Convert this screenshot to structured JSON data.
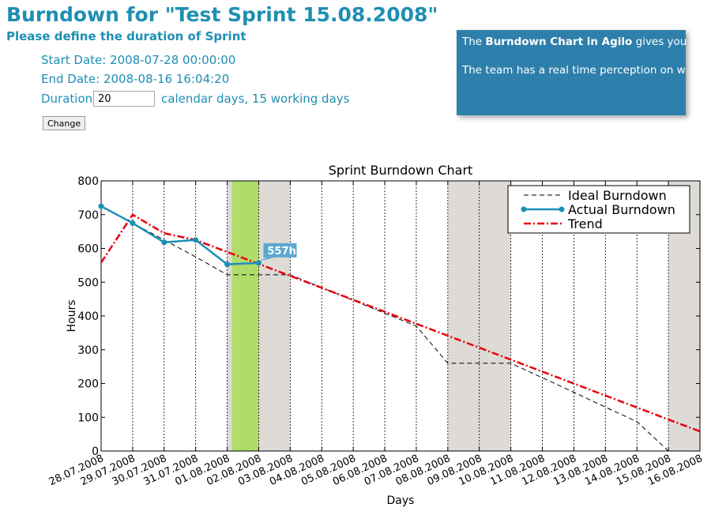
{
  "header": {
    "title": "Burndown for \"Test Sprint 15.08.2008\"",
    "subtitle": "Please define the duration of Sprint"
  },
  "sprint": {
    "start_label": "Start Date: 2008-07-28 00:00:00",
    "end_label": "End Date: 2008-08-16 16:04:20",
    "duration_label": "Duration",
    "duration_value": "20",
    "duration_suffix": "calendar days, 15 working days",
    "change_button": "Change"
  },
  "callout": {
    "line1_pre": "The ",
    "line1_bold": "Burndown Chart in Agilo",
    "line1_post": " gives you the actual status of the Sprint.",
    "line2": "The team has a real time perception on what is going on, and it can react fast."
  },
  "colors": {
    "accent": "#1f8fb3",
    "callout_bg": "#2e7fab",
    "actual": "#1a8fb8",
    "trend": "#e8000b",
    "weekend": "#dedad5",
    "today": "#b0dc6a"
  },
  "chart_data": {
    "type": "line",
    "title": "Sprint Burndown Chart",
    "xlabel": "Days",
    "ylabel": "Hours",
    "x": [
      "28.07.2008",
      "29.07.2008",
      "30.07.2008",
      "31.07.2008",
      "01.08.2008",
      "02.08.2008",
      "03.08.2008",
      "04.08.2008",
      "05.08.2008",
      "06.08.2008",
      "07.08.2008",
      "08.08.2008",
      "09.08.2008",
      "10.08.2008",
      "11.08.2008",
      "12.08.2008",
      "13.08.2008",
      "14.08.2008",
      "15.08.2008",
      "16.08.2008"
    ],
    "ylim": [
      0,
      800
    ],
    "yticks": [
      0,
      100,
      200,
      300,
      400,
      500,
      600,
      700,
      800
    ],
    "grid": "vertical",
    "legend_position": "top-right",
    "weekend_bands": [
      [
        4,
        6
      ],
      [
        11,
        13
      ],
      [
        18,
        19
      ]
    ],
    "today_band": [
      4.15,
      5.0
    ],
    "annotation": {
      "text": "557h",
      "x": 5,
      "y": 557
    },
    "series": [
      {
        "name": "Ideal Burndown",
        "style": "dashed",
        "color": "#000000",
        "points": [
          [
            0,
            725
          ],
          [
            1,
            675
          ],
          [
            2,
            625
          ],
          [
            3,
            575
          ],
          [
            4,
            522
          ],
          [
            6,
            522
          ],
          [
            7,
            484
          ],
          [
            8,
            446
          ],
          [
            9,
            408
          ],
          [
            10,
            370
          ],
          [
            11,
            260
          ],
          [
            13,
            260
          ],
          [
            14,
            217
          ],
          [
            15,
            174
          ],
          [
            16,
            130
          ],
          [
            17,
            87
          ],
          [
            18,
            0
          ]
        ]
      },
      {
        "name": "Actual Burndown",
        "style": "solid-marker",
        "color": "#1a8fb8",
        "points": [
          [
            0,
            725
          ],
          [
            1,
            675
          ],
          [
            2,
            618
          ],
          [
            3,
            625
          ],
          [
            4,
            553
          ],
          [
            5,
            557
          ]
        ]
      },
      {
        "name": "Trend",
        "style": "dashdot",
        "color": "#e8000b",
        "points": [
          [
            0,
            558
          ],
          [
            1,
            700
          ],
          [
            2,
            645
          ],
          [
            3,
            625
          ],
          [
            19,
            58
          ]
        ]
      }
    ]
  }
}
